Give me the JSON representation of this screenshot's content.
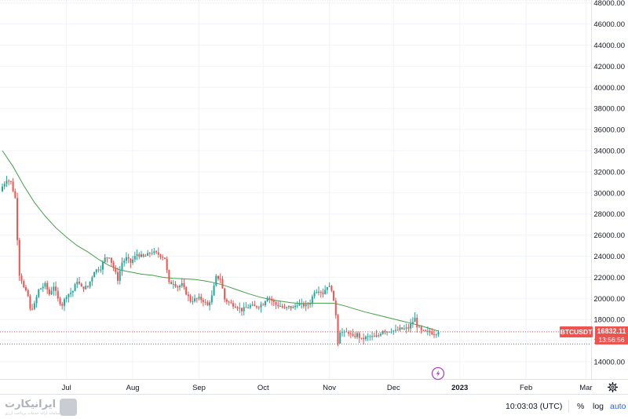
{
  "chart_data": {
    "type": "candlestick",
    "symbol": "BTCUSDT",
    "y_axis": {
      "range": [
        12600,
        48300
      ],
      "ticks": [
        14000,
        16000,
        18000,
        20000,
        22000,
        24000,
        26000,
        28000,
        30000,
        32000,
        34000,
        36000,
        38000,
        40000,
        42000,
        44000,
        46000,
        48000
      ],
      "tick_labels": [
        "14000.00",
        "16000.00",
        "18000.00",
        "20000.00",
        "22000.00",
        "24000.00",
        "26000.00",
        "28000.00",
        "30000.00",
        "32000.00",
        "34000.00",
        "36000.00",
        "38000.00",
        "40000.00",
        "42000.00",
        "44000.00",
        "46000.00",
        "48000.00"
      ]
    },
    "x_axis": {
      "ticks": [
        {
          "label": "Jul",
          "day": 30,
          "bold": false
        },
        {
          "label": "Aug",
          "day": 61,
          "bold": false
        },
        {
          "label": "Sep",
          "day": 92,
          "bold": false
        },
        {
          "label": "Oct",
          "day": 122,
          "bold": false
        },
        {
          "label": "Nov",
          "day": 153,
          "bold": false
        },
        {
          "label": "Dec",
          "day": 183,
          "bold": false
        },
        {
          "label": "2023",
          "day": 214,
          "bold": true
        },
        {
          "label": "Feb",
          "day": 245,
          "bold": false
        },
        {
          "label": "Mar",
          "day": 273,
          "bold": false
        }
      ]
    },
    "grid": true,
    "up_color": "#26a69a",
    "down_color": "#ef5350",
    "ma_color": "#43a047",
    "last_price": 16832.11,
    "last_price_label": "16832.11",
    "countdown": "13:56:56",
    "price_line_values": [
      16832,
      15680
    ],
    "top_line_value": 48300,
    "candle_anchors": [
      [
        0,
        30600
      ],
      [
        2,
        31300
      ],
      [
        4,
        31000
      ],
      [
        6,
        29500
      ],
      [
        8,
        22500
      ],
      [
        10,
        21000
      ],
      [
        12,
        20200
      ],
      [
        13,
        18900
      ],
      [
        15,
        19400
      ],
      [
        17,
        20800
      ],
      [
        20,
        21300
      ],
      [
        22,
        20400
      ],
      [
        24,
        21200
      ],
      [
        26,
        19900
      ],
      [
        28,
        19400
      ],
      [
        30,
        20300
      ],
      [
        33,
        20700
      ],
      [
        35,
        21700
      ],
      [
        37,
        21000
      ],
      [
        40,
        21100
      ],
      [
        43,
        22600
      ],
      [
        46,
        22900
      ],
      [
        48,
        23800
      ],
      [
        50,
        24000
      ],
      [
        52,
        22900
      ],
      [
        54,
        21800
      ],
      [
        56,
        23400
      ],
      [
        58,
        23800
      ],
      [
        60,
        23400
      ],
      [
        63,
        24200
      ],
      [
        66,
        23900
      ],
      [
        70,
        24400
      ],
      [
        74,
        24100
      ],
      [
        76,
        23800
      ],
      [
        78,
        21400
      ],
      [
        80,
        21500
      ],
      [
        82,
        21100
      ],
      [
        84,
        21300
      ],
      [
        86,
        20500
      ],
      [
        88,
        19800
      ],
      [
        92,
        20000
      ],
      [
        94,
        19800
      ],
      [
        96,
        19300
      ],
      [
        98,
        20200
      ],
      [
        100,
        22000
      ],
      [
        102,
        21900
      ],
      [
        104,
        19900
      ],
      [
        106,
        19600
      ],
      [
        108,
        19400
      ],
      [
        110,
        19200
      ],
      [
        112,
        18900
      ],
      [
        116,
        19300
      ],
      [
        118,
        19200
      ],
      [
        120,
        19300
      ],
      [
        122,
        19500
      ],
      [
        124,
        20200
      ],
      [
        126,
        19800
      ],
      [
        128,
        19400
      ],
      [
        130,
        19300
      ],
      [
        132,
        19000
      ],
      [
        134,
        19200
      ],
      [
        136,
        19100
      ],
      [
        138,
        19500
      ],
      [
        140,
        19400
      ],
      [
        142,
        19300
      ],
      [
        144,
        19600
      ],
      [
        146,
        20700
      ],
      [
        148,
        20800
      ],
      [
        150,
        20500
      ],
      [
        152,
        21200
      ],
      [
        154,
        20900
      ],
      [
        155,
        19600
      ],
      [
        156,
        18500
      ],
      [
        157,
        16000
      ],
      [
        158,
        16900
      ],
      [
        160,
        16700
      ],
      [
        162,
        16800
      ],
      [
        164,
        16300
      ],
      [
        166,
        16600
      ],
      [
        168,
        16100
      ],
      [
        170,
        16300
      ],
      [
        172,
        16400
      ],
      [
        174,
        16300
      ],
      [
        176,
        16500
      ],
      [
        178,
        17000
      ],
      [
        180,
        16900
      ],
      [
        182,
        17000
      ],
      [
        184,
        16900
      ],
      [
        186,
        17100
      ],
      [
        188,
        17100
      ],
      [
        190,
        17200
      ],
      [
        192,
        17800
      ],
      [
        193,
        18100
      ],
      [
        194,
        17400
      ],
      [
        196,
        16900
      ],
      [
        198,
        16800
      ],
      [
        200,
        16800
      ],
      [
        202,
        16700
      ],
      [
        204,
        16800
      ]
    ],
    "moving_average": [
      [
        0,
        34000
      ],
      [
        5,
        32500
      ],
      [
        10,
        30700
      ],
      [
        15,
        29100
      ],
      [
        20,
        27800
      ],
      [
        25,
        26700
      ],
      [
        30,
        25800
      ],
      [
        35,
        25000
      ],
      [
        40,
        24400
      ],
      [
        45,
        23700
      ],
      [
        50,
        23100
      ],
      [
        55,
        22700
      ],
      [
        60,
        22500
      ],
      [
        65,
        22300
      ],
      [
        70,
        22200
      ],
      [
        75,
        22000
      ],
      [
        80,
        21900
      ],
      [
        85,
        21850
      ],
      [
        90,
        21800
      ],
      [
        95,
        21650
      ],
      [
        100,
        21450
      ],
      [
        105,
        21150
      ],
      [
        110,
        20800
      ],
      [
        115,
        20450
      ],
      [
        120,
        20150
      ],
      [
        125,
        19900
      ],
      [
        130,
        19750
      ],
      [
        135,
        19600
      ],
      [
        140,
        19500
      ],
      [
        145,
        19550
      ],
      [
        150,
        19550
      ],
      [
        155,
        19550
      ],
      [
        160,
        19300
      ],
      [
        165,
        19000
      ],
      [
        170,
        18700
      ],
      [
        175,
        18450
      ],
      [
        180,
        18200
      ],
      [
        185,
        17950
      ],
      [
        190,
        17700
      ],
      [
        195,
        17450
      ],
      [
        200,
        17150
      ],
      [
        204,
        16900
      ]
    ]
  },
  "bottom_bar": {
    "logo_text": "ایرانیکارت",
    "logo_subtext": "سامانه ارائه خدمات پرداخت ارزی",
    "clock": "10:03:03 (UTC)",
    "percent_label": "%",
    "log_label": "log",
    "auto_label": "auto"
  }
}
